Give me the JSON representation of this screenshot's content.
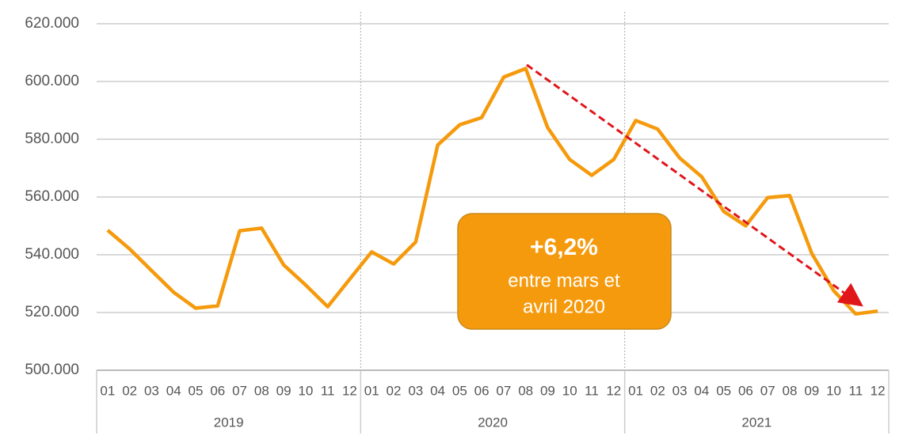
{
  "chart_data": {
    "type": "line",
    "groups": [
      {
        "label": "2019",
        "categories": [
          "01",
          "02",
          "03",
          "04",
          "05",
          "06",
          "07",
          "08",
          "09",
          "10",
          "11",
          "12"
        ]
      },
      {
        "label": "2020",
        "categories": [
          "01",
          "02",
          "03",
          "04",
          "05",
          "06",
          "07",
          "08",
          "09",
          "10",
          "11",
          "12"
        ]
      },
      {
        "label": "2021",
        "categories": [
          "01",
          "02",
          "03",
          "04",
          "05",
          "06",
          "07",
          "08",
          "09",
          "10",
          "11",
          "12"
        ]
      }
    ],
    "values": [
      548500,
      542000,
      534500,
      527000,
      521500,
      522300,
      548300,
      549200,
      536500,
      529500,
      522000,
      531500,
      541000,
      536800,
      544400,
      578000,
      585000,
      587500,
      601500,
      604500,
      584000,
      573000,
      567500,
      573000,
      586500,
      583500,
      573500,
      567000,
      555000,
      550000,
      559800,
      560500,
      540500,
      527500,
      519500,
      520500
    ],
    "color": "#f59a0c",
    "ylim": [
      500000,
      620000
    ],
    "yticks": [
      {
        "value": 500000,
        "label": "500.000"
      },
      {
        "value": 520000,
        "label": "520.000"
      },
      {
        "value": 540000,
        "label": "540.000"
      },
      {
        "value": 560000,
        "label": "560.000"
      },
      {
        "value": 580000,
        "label": "580.000"
      },
      {
        "value": 600000,
        "label": "600.000"
      },
      {
        "value": 620000,
        "label": "620.000"
      }
    ],
    "grid": true,
    "annotation": {
      "title": "+6,2%",
      "lines": [
        "entre mars et",
        "avril 2020"
      ]
    }
  }
}
